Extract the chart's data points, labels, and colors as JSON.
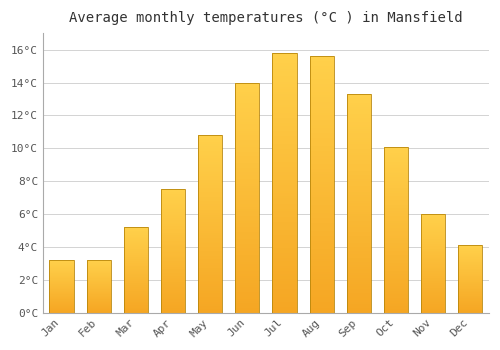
{
  "title": "Average monthly temperatures (°C ) in Mansfield",
  "months": [
    "Jan",
    "Feb",
    "Mar",
    "Apr",
    "May",
    "Jun",
    "Jul",
    "Aug",
    "Sep",
    "Oct",
    "Nov",
    "Dec"
  ],
  "values": [
    3.2,
    3.2,
    5.2,
    7.5,
    10.8,
    14.0,
    15.8,
    15.6,
    13.3,
    10.1,
    6.0,
    4.1
  ],
  "bar_color_bottom": "#F5A623",
  "bar_color_top": "#FFD04A",
  "bar_edge_color": "#B8860B",
  "background_color": "#FFFFFF",
  "plot_bg_color": "#FFFFFF",
  "grid_color": "#CCCCCC",
  "title_fontsize": 10,
  "tick_fontsize": 8,
  "ylim": [
    0,
    17
  ],
  "yticks": [
    0,
    2,
    4,
    6,
    8,
    10,
    12,
    14,
    16
  ],
  "ytick_labels": [
    "0°C",
    "2°C",
    "4°C",
    "6°C",
    "8°C",
    "10°C",
    "12°C",
    "14°C",
    "16°C"
  ],
  "bar_width": 0.65
}
